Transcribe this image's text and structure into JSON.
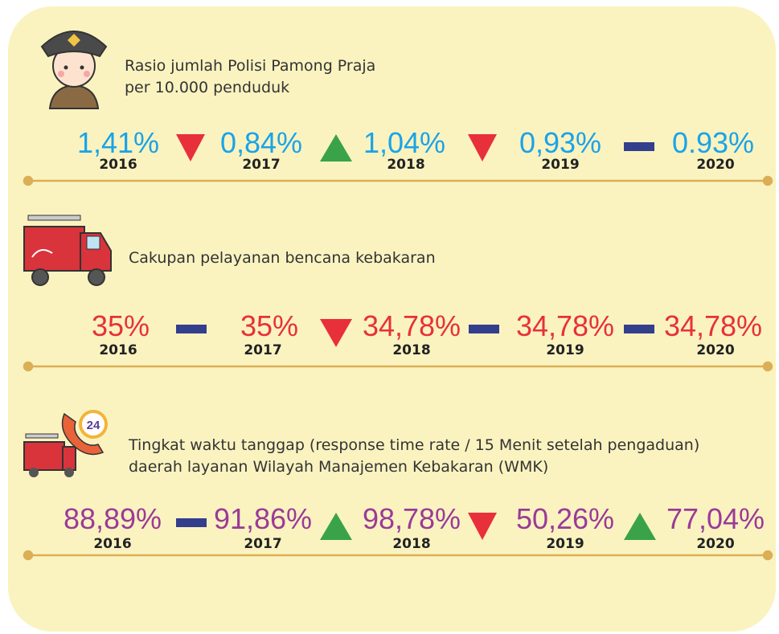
{
  "sections": [
    {
      "title": [
        "Rasio jumlah Polisi Pamong Praja",
        "per 10.000 penduduk"
      ],
      "color": "#1aa3e8",
      "items": [
        {
          "value": "1,41%",
          "year": "2016"
        },
        {
          "value": "0,84%",
          "year": "2017"
        },
        {
          "value": "1,04%",
          "year": "2018"
        },
        {
          "value": "0,93%",
          "year": "2019"
        },
        {
          "value": "0.93%",
          "year": "2020"
        }
      ]
    },
    {
      "title": [
        "Cakupan pelayanan bencana kebakaran"
      ],
      "color": "#e8303a",
      "items": [
        {
          "value": "35%",
          "year": "2016"
        },
        {
          "value": "35%",
          "year": "2017"
        },
        {
          "value": "34,78%",
          "year": "2018"
        },
        {
          "value": "34,78%",
          "year": "2019"
        },
        {
          "value": "34,78%",
          "year": "2020"
        }
      ]
    },
    {
      "title": [
        "Tingkat waktu tanggap (response time rate / 15 Menit setelah pengaduan)",
        "daerah layanan Wilayah Manajemen Kebakaran (WMK)"
      ],
      "color": "#9b3a98",
      "items": [
        {
          "value": "88,89%",
          "year": "2016"
        },
        {
          "value": "91,86%",
          "year": "2017"
        },
        {
          "value": "98,78%",
          "year": "2018"
        },
        {
          "value": "50,26%",
          "year": "2019"
        },
        {
          "value": "77,04%",
          "year": "2020"
        }
      ]
    }
  ]
}
